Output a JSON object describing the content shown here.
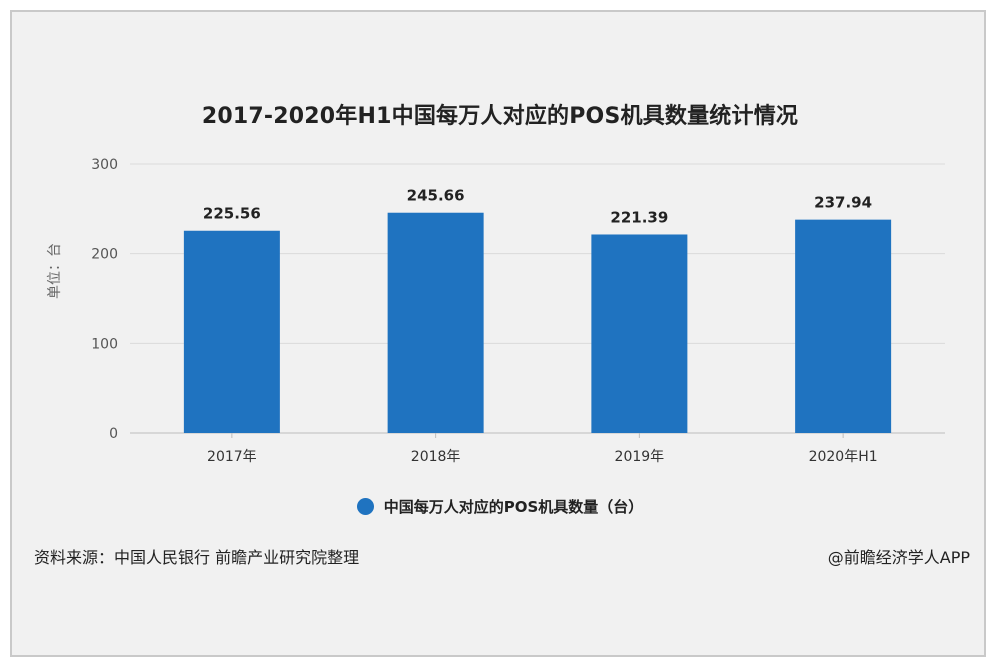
{
  "chart_data": {
    "type": "bar",
    "title": "2017-2020年H1中国每万人对应的POS机具数量统计情况",
    "ylabel": "单位：台",
    "categories": [
      "2017年",
      "2018年",
      "2019年",
      "2020年H1"
    ],
    "series": [
      {
        "name": "中国每万人对应的POS机具数量（台）",
        "values": [
          225.56,
          245.66,
          221.39,
          237.94
        ]
      }
    ],
    "data_labels": [
      "225.56",
      "245.66",
      "221.39",
      "237.94"
    ],
    "ylim": [
      0,
      300
    ],
    "yticks": [
      0,
      100,
      200,
      300
    ],
    "grid": true,
    "legend_position": "bottom",
    "bar_color": "#1f73c0"
  },
  "footer": {
    "source": "资料来源：中国人民银行 前瞻产业研究院整理",
    "watermark": "@前瞻经济学人APP"
  }
}
